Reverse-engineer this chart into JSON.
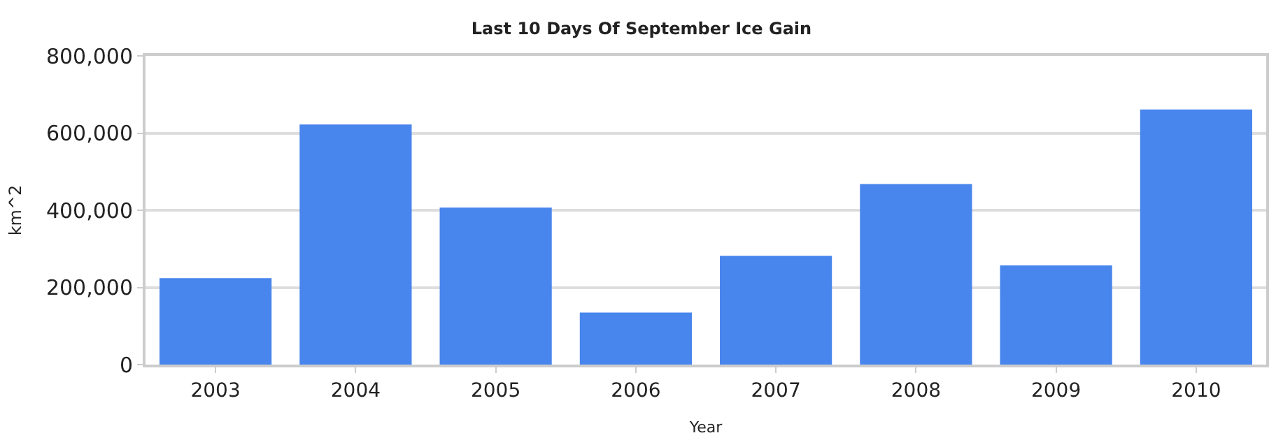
{
  "chart_data": {
    "type": "bar",
    "title": "Last 10 Days Of September Ice Gain",
    "xlabel": "Year",
    "ylabel": "km^2",
    "categories": [
      "2003",
      "2004",
      "2005",
      "2006",
      "2007",
      "2008",
      "2009",
      "2010"
    ],
    "values": [
      224000,
      622000,
      407000,
      135000,
      282000,
      468000,
      257000,
      661000
    ],
    "color": "#4885ed",
    "ylim": [
      0,
      800000
    ],
    "yticks": [
      0,
      {
        "value": 200000,
        "label": "200,000"
      },
      {
        "value": 400000,
        "label": "400,000"
      },
      {
        "value": 600000,
        "label": "600,000"
      },
      {
        "value": 800000,
        "label": "800,000"
      }
    ],
    "grid": "y",
    "legend": false
  }
}
